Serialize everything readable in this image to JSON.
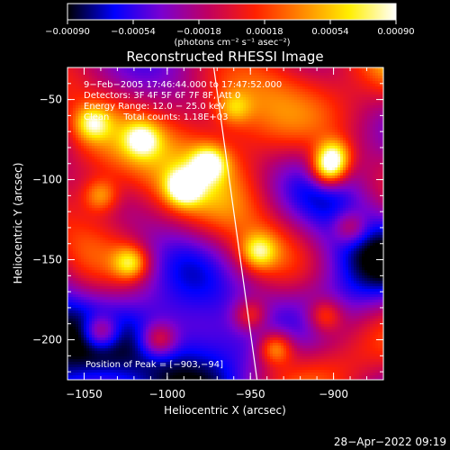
{
  "chart_data": {
    "type": "heatmap",
    "title": "Reconstructed RHESSI Image",
    "xlabel": "Heliocentric X (arcsec)",
    "ylabel": "Heliocentric Y (arcsec)",
    "xlim": [
      -1060,
      -870
    ],
    "ylim": [
      -225,
      -30
    ],
    "x_ticks": [
      -1050,
      -1000,
      -950,
      -900
    ],
    "x_tick_labels": [
      "−1050",
      "−1000",
      "−950",
      "−900"
    ],
    "y_ticks": [
      -50,
      -100,
      -150,
      -200
    ],
    "y_tick_labels": [
      "−50",
      "−100",
      "−150",
      "−200"
    ],
    "colorbar": {
      "range": [
        -0.0009,
        0.0009
      ],
      "ticks": [
        -0.0009,
        -0.00054,
        -0.00018,
        0.00018,
        0.00054,
        0.0009
      ],
      "tick_labels": [
        "−0.00090",
        "−0.00054",
        "−0.00018",
        "0.00018",
        "0.00054",
        "0.00090"
      ],
      "unit_label": "(photons cm⁻² s⁻¹ asec⁻²)",
      "colors": [
        "#000000",
        "#0000ff",
        "#7a00d0",
        "#c00060",
        "#ff2000",
        "#ff8800",
        "#ffee00",
        "#ffffff"
      ]
    },
    "annotations": {
      "time": "9−Feb−2005 17:46:44.000 to 17:47:52.000",
      "detectors": "Detectors: 3F 4F 5F 6F 7F 8F, Att 0",
      "energy": "Energy Range: 12.0 − 25.0 keV",
      "clean": "Clean     Total counts: 1.18E+03",
      "peak": "Position of Peak = [−903,−94]"
    },
    "peak_position": [
      -903,
      -94
    ],
    "limb_line": [
      [
        -972,
        -30
      ],
      [
        -946,
        -225
      ]
    ],
    "bright_regions": [
      {
        "x": -990,
        "y": -105,
        "amp": 1.0
      },
      {
        "x": -975,
        "y": -90,
        "amp": 0.9
      },
      {
        "x": -903,
        "y": -94,
        "amp": 1.0
      },
      {
        "x": -900,
        "y": -85,
        "amp": 0.85
      },
      {
        "x": -1015,
        "y": -75,
        "amp": 0.7
      },
      {
        "x": -1045,
        "y": -65,
        "amp": 0.7
      },
      {
        "x": -1040,
        "y": -110,
        "amp": 0.6
      },
      {
        "x": -1022,
        "y": -152,
        "amp": 0.8
      },
      {
        "x": -1040,
        "y": -195,
        "amp": 0.75
      },
      {
        "x": -1005,
        "y": -200,
        "amp": 0.65
      },
      {
        "x": -945,
        "y": -145,
        "amp": 0.7
      },
      {
        "x": -935,
        "y": -205,
        "amp": 0.8
      },
      {
        "x": -950,
        "y": -185,
        "amp": 0.6
      },
      {
        "x": -905,
        "y": -185,
        "amp": 0.6
      },
      {
        "x": -890,
        "y": -130,
        "amp": 0.55
      },
      {
        "x": -960,
        "y": -55,
        "amp": 0.5
      }
    ]
  },
  "footer": {
    "timestamp": "28−Apr−2022 09:19"
  }
}
